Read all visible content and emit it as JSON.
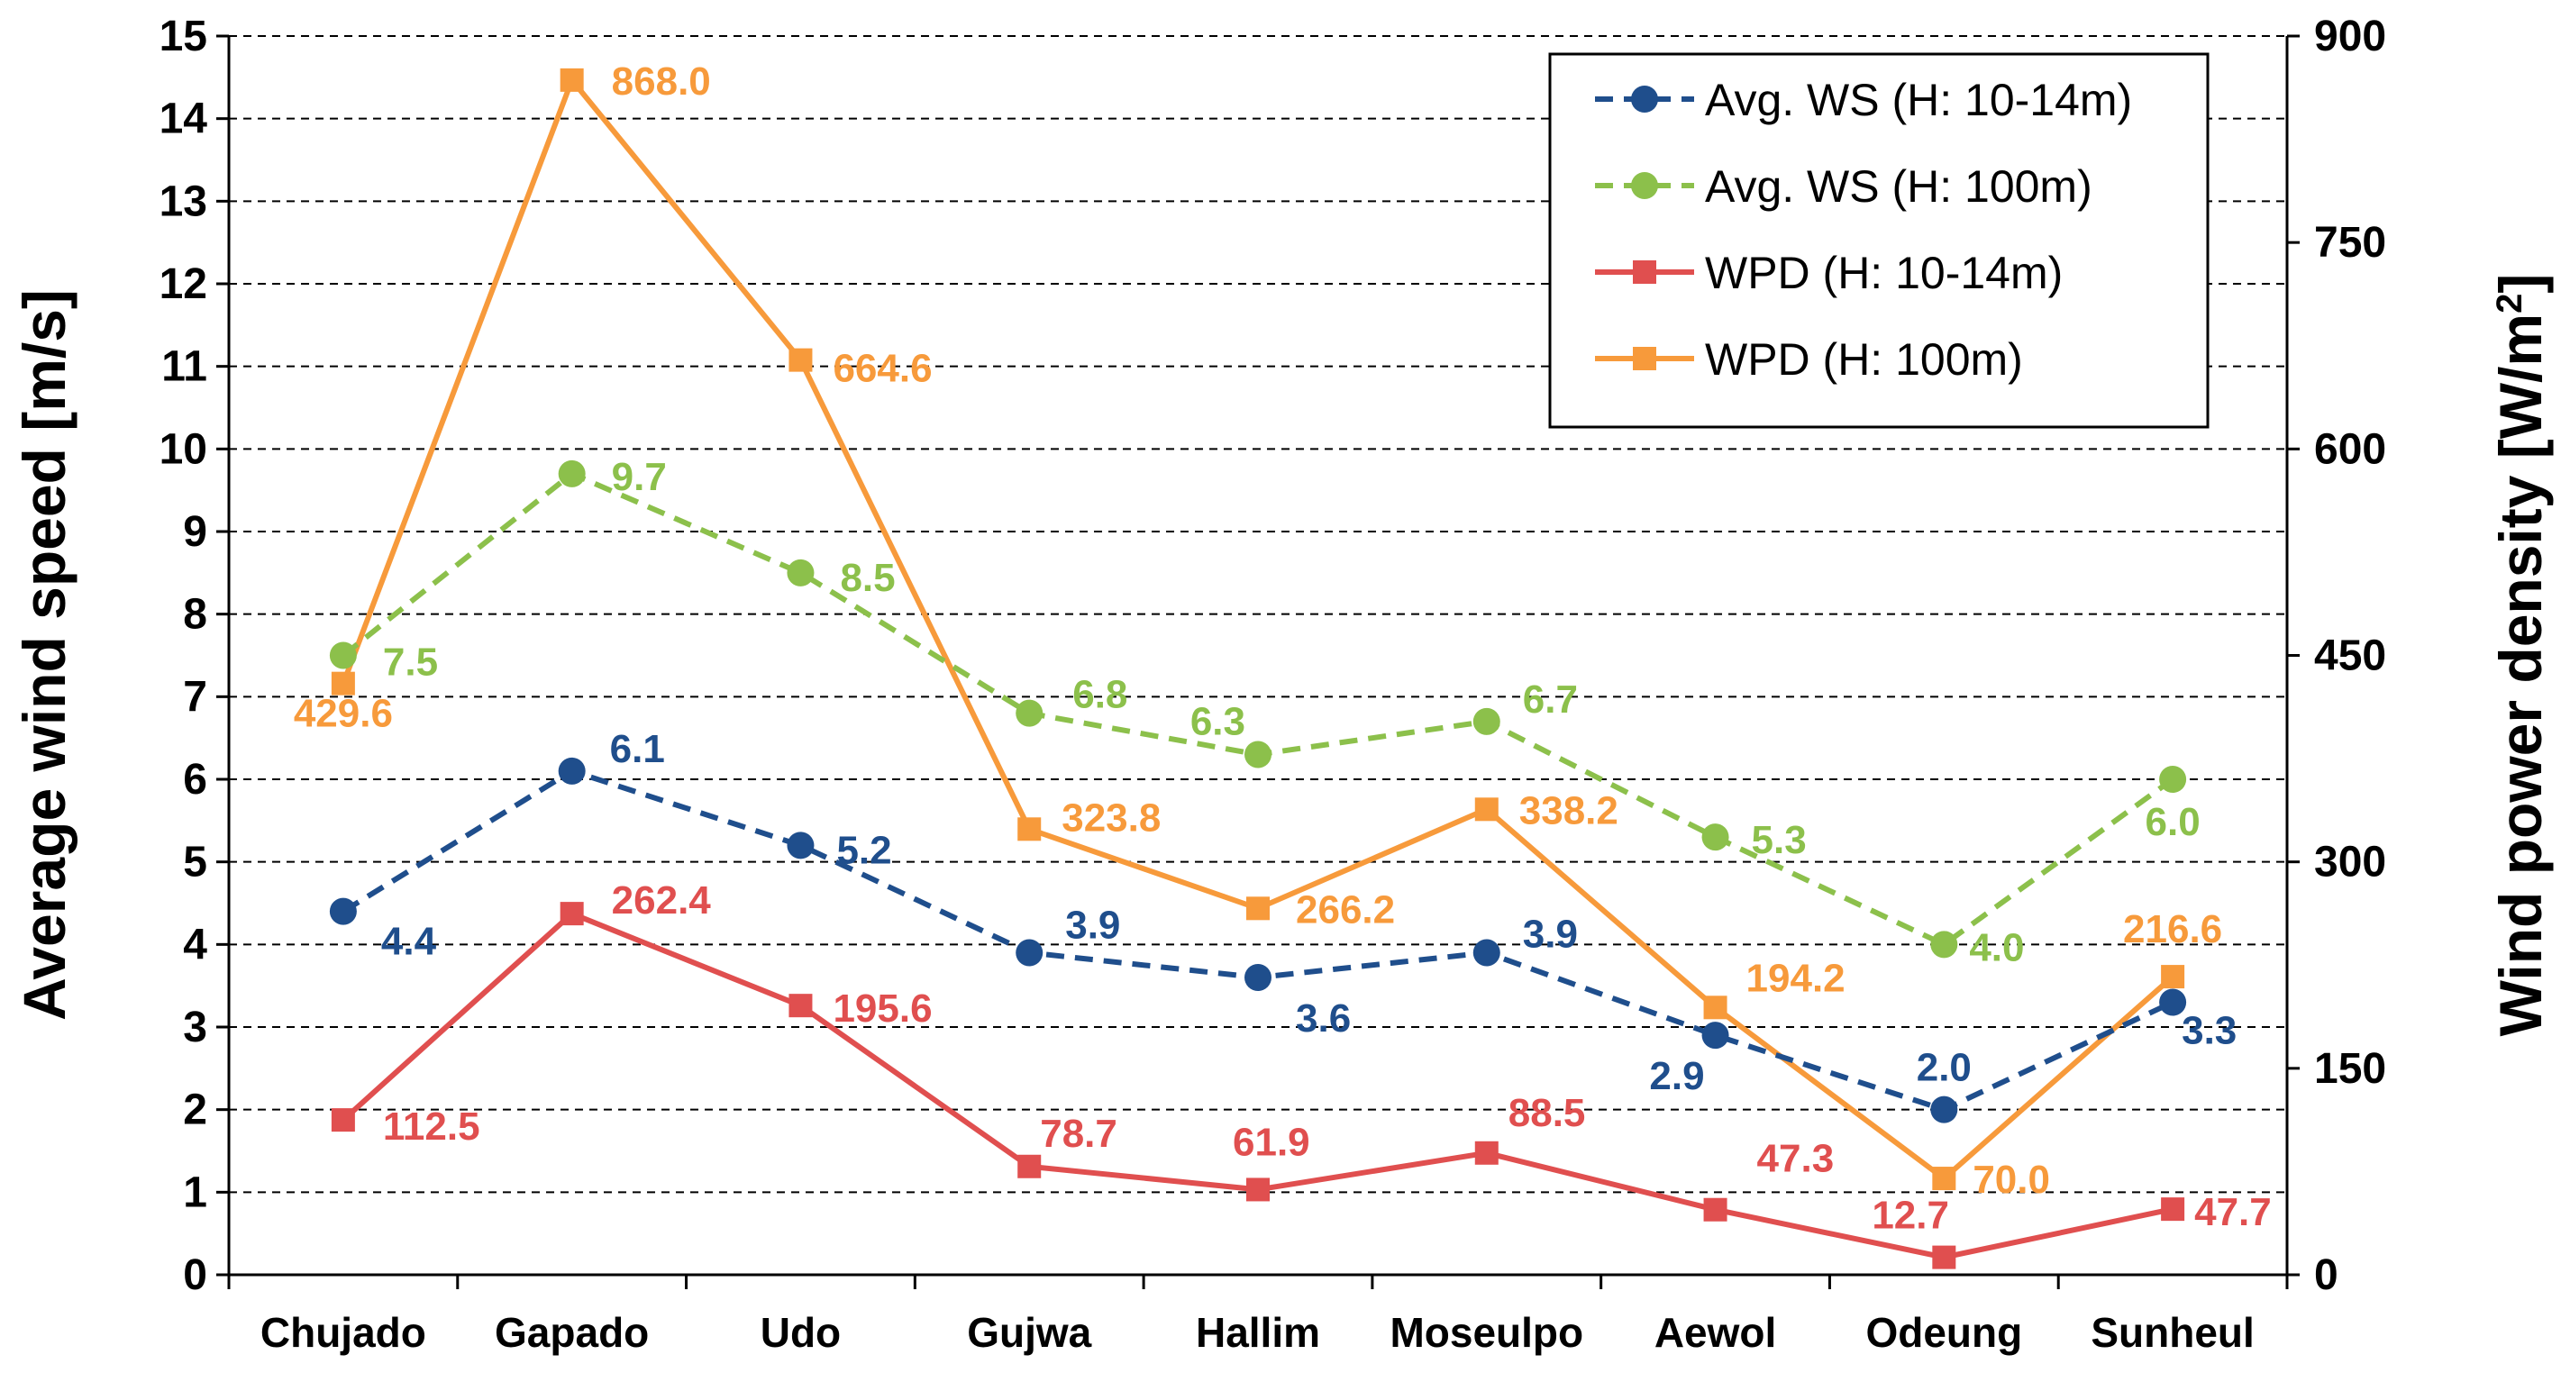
{
  "chart_data": {
    "type": "line",
    "categories": [
      "Chujado",
      "Gapado",
      "Udo",
      "Gujwa",
      "Hallim",
      "Moseulpo",
      "Aewol",
      "Odeung",
      "Sunheul"
    ],
    "y_left": {
      "label": "Average wind speed [m/s]",
      "min": 0,
      "max": 15,
      "step": 1
    },
    "y_right": {
      "label_main": "Wind power density [W/m",
      "label_sup": "2",
      "label_end": "]",
      "min": 0,
      "max": 900,
      "step": 150
    },
    "grid": true,
    "legend_position": "top-right",
    "series": [
      {
        "name": "Avg. WS (H: 10-14m)",
        "axis": "left",
        "style": "dashed",
        "marker": "circle",
        "color": "#1f4e8c",
        "values": [
          4.4,
          6.1,
          5.2,
          3.9,
          3.6,
          3.9,
          2.9,
          2.0,
          3.3
        ],
        "labels": [
          "4.4",
          "6.1",
          "5.2",
          "3.9",
          "3.6",
          "3.9",
          "2.9",
          "2.0",
          "3.3"
        ]
      },
      {
        "name": "Avg. WS (H: 100m)",
        "axis": "left",
        "style": "dashed",
        "marker": "circle",
        "color": "#8cc04b",
        "values": [
          7.5,
          9.7,
          8.5,
          6.8,
          6.3,
          6.7,
          5.3,
          4.0,
          6.0
        ],
        "labels": [
          "7.5",
          "9.7",
          "8.5",
          "6.8",
          "6.3",
          "6.7",
          "5.3",
          "4.0",
          "6.0"
        ]
      },
      {
        "name": "WPD (H: 10-14m)",
        "axis": "right",
        "style": "solid",
        "marker": "square",
        "color": "#e04f4f",
        "values": [
          112.5,
          262.4,
          195.6,
          78.7,
          61.9,
          88.5,
          47.3,
          12.7,
          47.7
        ],
        "labels": [
          "112.5",
          "262.4",
          "195.6",
          "78.7",
          "61.9",
          "88.5",
          "47.3",
          "12.7",
          "47.7"
        ]
      },
      {
        "name": "WPD (H: 100m)",
        "axis": "right",
        "style": "solid",
        "marker": "square",
        "color": "#f79a3b",
        "values": [
          429.6,
          868.0,
          664.6,
          323.8,
          266.2,
          338.2,
          194.2,
          70.0,
          216.6
        ],
        "labels": [
          "429.6",
          "868.0",
          "664.6",
          "323.8",
          "266.2",
          "338.2",
          "194.2",
          "70.0",
          "216.6"
        ]
      }
    ]
  }
}
